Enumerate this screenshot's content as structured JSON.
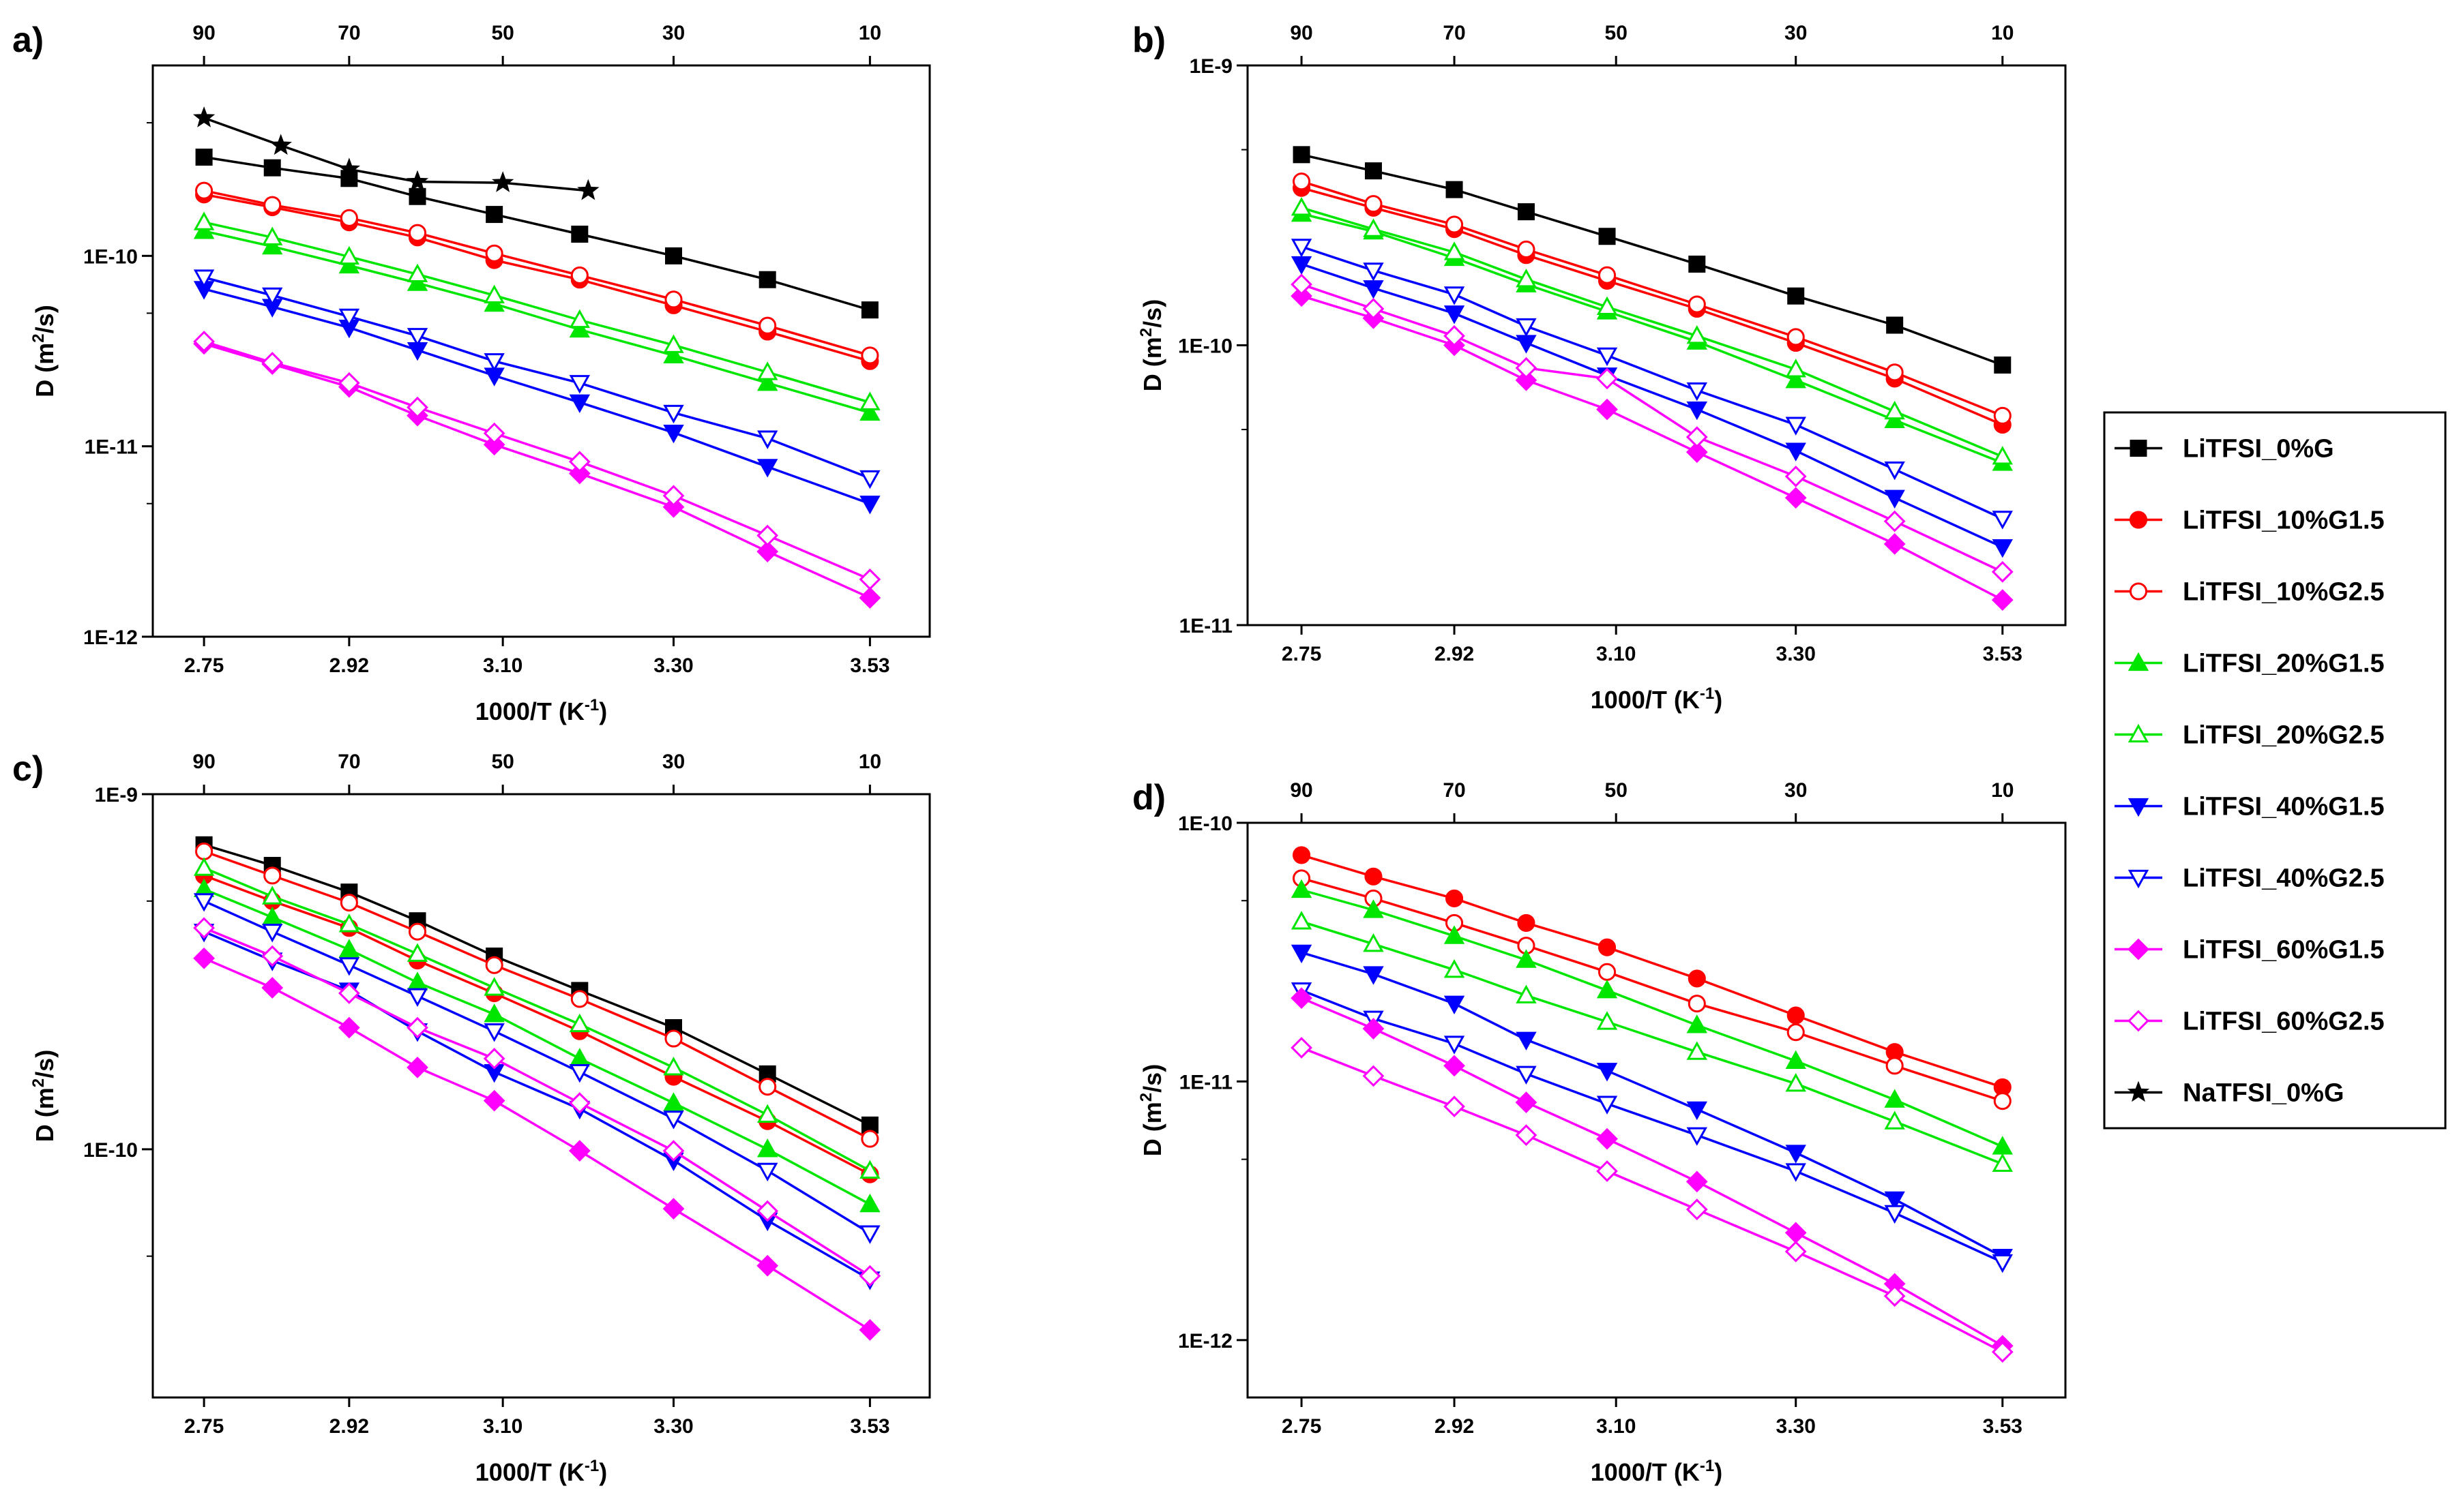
{
  "legend": [
    {
      "name": "LiTFSI_0%G",
      "color": "#000000",
      "marker": "square",
      "filled": true
    },
    {
      "name": "LiTFSI_10%G1.5",
      "color": "#ff0000",
      "marker": "circle",
      "filled": true
    },
    {
      "name": "LiTFSI_10%G2.5",
      "color": "#ff0000",
      "marker": "circle",
      "filled": false
    },
    {
      "name": "LiTFSI_20%G1.5",
      "color": "#00e600",
      "marker": "triangle-up",
      "filled": true
    },
    {
      "name": "LiTFSI_20%G2.5",
      "color": "#00e600",
      "marker": "triangle-up",
      "filled": false
    },
    {
      "name": "LiTFSI_40%G1.5",
      "color": "#0000ff",
      "marker": "triangle-down",
      "filled": true
    },
    {
      "name": "LiTFSI_40%G2.5",
      "color": "#0000ff",
      "marker": "triangle-down",
      "filled": false
    },
    {
      "name": "LiTFSI_60%G1.5",
      "color": "#ff00ff",
      "marker": "diamond",
      "filled": true
    },
    {
      "name": "LiTFSI_60%G2.5",
      "color": "#ff00ff",
      "marker": "diamond",
      "filled": false
    },
    {
      "name": "NaTFSI_0%G",
      "color": "#000000",
      "marker": "star",
      "filled": true
    }
  ],
  "chart_data": [
    {
      "panel": "a)",
      "type": "line",
      "xlabel": "1000/T (K",
      "xlabel_sup": "-1",
      "ylabel": "D (m",
      "ylabel_sup": "2",
      "ylabel_end": "/s)",
      "xlim": [
        2.69,
        3.6
      ],
      "ylim": [
        1e-12,
        1e-09
      ],
      "y_scale": "log",
      "x_ticks": [
        2.75,
        2.92,
        3.1,
        3.3,
        3.53
      ],
      "x_tick_labels": [
        "2.75",
        "2.92",
        "3.10",
        "3.30",
        "3.53"
      ],
      "y_ticks": [
        1e-12,
        1e-11,
        1e-10
      ],
      "y_tick_labels": [
        "1E-12",
        "1E-11",
        "1E-10"
      ],
      "top_ticks": [
        2.75,
        2.92,
        3.1,
        3.3,
        3.53
      ],
      "top_tick_labels": [
        "90",
        "70",
        "50",
        "30",
        "10"
      ],
      "x": [
        2.75,
        2.83,
        2.92,
        3.0,
        3.09,
        3.19,
        3.3,
        3.41,
        3.53
      ],
      "series": [
        {
          "name": "LiTFSI_0%G",
          "values": [
            3.3e-10,
            2.9e-10,
            2.55e-10,
            2.05e-10,
            1.65e-10,
            1.3e-10,
            1e-10,
            7.5e-11,
            5.2e-11
          ]
        },
        {
          "name": "LiTFSI_10%G1.5",
          "values": [
            2.1e-10,
            1.8e-10,
            1.5e-10,
            1.25e-10,
            9.5e-11,
            7.5e-11,
            5.5e-11,
            4e-11,
            2.8e-11
          ]
        },
        {
          "name": "LiTFSI_10%G2.5",
          "values": [
            2.2e-10,
            1.85e-10,
            1.58e-10,
            1.32e-10,
            1.03e-10,
            7.9e-11,
            5.9e-11,
            4.3e-11,
            3e-11
          ]
        },
        {
          "name": "LiTFSI_20%G1.5",
          "values": [
            1.35e-10,
            1.12e-10,
            8.9e-11,
            7.2e-11,
            5.6e-11,
            4.1e-11,
            3e-11,
            2.15e-11,
            1.5e-11
          ]
        },
        {
          "name": "LiTFSI_20%G2.5",
          "values": [
            1.5e-10,
            1.25e-10,
            9.9e-11,
            8e-11,
            6.2e-11,
            4.6e-11,
            3.4e-11,
            2.45e-11,
            1.7e-11
          ]
        },
        {
          "name": "LiTFSI_40%G1.5",
          "values": [
            6.7e-11,
            5.4e-11,
            4.2e-11,
            3.2e-11,
            2.35e-11,
            1.7e-11,
            1.18e-11,
            7.8e-12,
            5e-12
          ]
        },
        {
          "name": "LiTFSI_40%G2.5",
          "values": [
            7.7e-11,
            6.2e-11,
            4.8e-11,
            3.8e-11,
            2.8e-11,
            2.15e-11,
            1.5e-11,
            1.1e-11,
            6.8e-12
          ]
        },
        {
          "name": "LiTFSI_60%G1.5",
          "values": [
            3.45e-11,
            2.7e-11,
            2.05e-11,
            1.45e-11,
            1.02e-11,
            7.2e-12,
            4.8e-12,
            2.8e-12,
            1.6e-12
          ]
        },
        {
          "name": "LiTFSI_60%G2.5",
          "values": [
            3.55e-11,
            2.75e-11,
            2.15e-11,
            1.6e-11,
            1.17e-11,
            8.3e-12,
            5.5e-12,
            3.4e-12,
            2e-12
          ]
        },
        {
          "name": "NaTFSI_0%G",
          "x": [
            2.75,
            2.84,
            2.92,
            3.0,
            3.1,
            3.2
          ],
          "values": [
            5.3e-10,
            3.8e-10,
            2.85e-10,
            2.45e-10,
            2.42e-10,
            2.2e-10
          ]
        }
      ]
    },
    {
      "panel": "b)",
      "type": "line",
      "xlabel": "1000/T (K",
      "xlabel_sup": "-1",
      "ylabel": "D (m",
      "ylabel_sup": "2",
      "ylabel_end": "/s)",
      "xlim": [
        2.69,
        3.6
      ],
      "ylim": [
        1e-11,
        1e-09
      ],
      "y_scale": "log",
      "x_ticks": [
        2.75,
        2.92,
        3.1,
        3.3,
        3.53
      ],
      "x_tick_labels": [
        "2.75",
        "2.92",
        "3.10",
        "3.30",
        "3.53"
      ],
      "y_ticks": [
        1e-11,
        1e-10,
        1e-09
      ],
      "y_tick_labels": [
        "1E-11",
        "1E-10",
        "1E-9"
      ],
      "top_ticks": [
        2.75,
        2.92,
        3.1,
        3.3,
        3.53
      ],
      "top_tick_labels": [
        "90",
        "70",
        "50",
        "30",
        "10"
      ],
      "x": [
        2.75,
        2.83,
        2.92,
        3.0,
        3.09,
        3.19,
        3.3,
        3.41,
        3.53
      ],
      "series": [
        {
          "name": "LiTFSI_0%G",
          "values": [
            4.8e-10,
            4.2e-10,
            3.6e-10,
            3e-10,
            2.45e-10,
            1.95e-10,
            1.5e-10,
            1.18e-10,
            8.5e-11
          ]
        },
        {
          "name": "LiTFSI_10%G1.5",
          "values": [
            3.65e-10,
            3.1e-10,
            2.6e-10,
            2.1e-10,
            1.7e-10,
            1.35e-10,
            1.02e-10,
            7.6e-11,
            5.2e-11
          ]
        },
        {
          "name": "LiTFSI_10%G2.5",
          "values": [
            3.85e-10,
            3.2e-10,
            2.7e-10,
            2.2e-10,
            1.78e-10,
            1.4e-10,
            1.07e-10,
            8e-11,
            5.6e-11
          ]
        },
        {
          "name": "LiTFSI_20%G1.5",
          "values": [
            2.95e-10,
            2.55e-10,
            2.05e-10,
            1.65e-10,
            1.32e-10,
            1.03e-10,
            7.5e-11,
            5.4e-11,
            3.8e-11
          ]
        },
        {
          "name": "LiTFSI_20%G2.5",
          "values": [
            3.1e-10,
            2.6e-10,
            2.15e-10,
            1.72e-10,
            1.37e-10,
            1.08e-10,
            8.2e-11,
            5.8e-11,
            4e-11
          ]
        },
        {
          "name": "LiTFSI_40%G1.5",
          "values": [
            1.95e-10,
            1.6e-10,
            1.3e-10,
            1.02e-10,
            7.8e-11,
            5.9e-11,
            4.2e-11,
            2.85e-11,
            1.9e-11
          ]
        },
        {
          "name": "LiTFSI_40%G2.5",
          "values": [
            2.25e-10,
            1.85e-10,
            1.52e-10,
            1.17e-10,
            9.2e-11,
            6.9e-11,
            5.2e-11,
            3.6e-11,
            2.4e-11
          ]
        },
        {
          "name": "LiTFSI_60%G1.5",
          "values": [
            1.5e-10,
            1.25e-10,
            1e-10,
            7.5e-11,
            5.9e-11,
            4.15e-11,
            2.85e-11,
            1.95e-11,
            1.23e-11
          ]
        },
        {
          "name": "LiTFSI_60%G2.5",
          "values": [
            1.65e-10,
            1.35e-10,
            1.08e-10,
            8.3e-11,
            7.6e-11,
            4.7e-11,
            3.4e-11,
            2.35e-11,
            1.55e-11
          ]
        }
      ]
    },
    {
      "panel": "c)",
      "type": "line",
      "xlabel": "1000/T (K",
      "xlabel_sup": "-1",
      "ylabel": "D (m",
      "ylabel_sup": "2",
      "ylabel_end": "/s)",
      "xlim": [
        2.69,
        3.6
      ],
      "ylim": [
        2e-11,
        1e-09
      ],
      "y_scale": "log",
      "x_ticks": [
        2.75,
        2.92,
        3.1,
        3.3,
        3.53
      ],
      "x_tick_labels": [
        "2.75",
        "2.92",
        "3.10",
        "3.30",
        "3.53"
      ],
      "y_ticks": [
        1e-10,
        1e-09
      ],
      "y_tick_labels": [
        "1E-10",
        "1E-9"
      ],
      "top_ticks": [
        2.75,
        2.92,
        3.1,
        3.3,
        3.53
      ],
      "top_tick_labels": [
        "90",
        "70",
        "50",
        "30",
        "10"
      ],
      "x": [
        2.75,
        2.83,
        2.92,
        3.0,
        3.09,
        3.19,
        3.3,
        3.41,
        3.53
      ],
      "series": [
        {
          "name": "LiTFSI_0%G",
          "values": [
            7.2e-10,
            6.3e-10,
            5.3e-10,
            4.4e-10,
            3.5e-10,
            2.8e-10,
            2.2e-10,
            1.63e-10,
            1.17e-10
          ]
        },
        {
          "name": "LiTFSI_10%G1.5",
          "values": [
            5.9e-10,
            5e-10,
            4.2e-10,
            3.4e-10,
            2.75e-10,
            2.15e-10,
            1.6e-10,
            1.2e-10,
            8.5e-11
          ]
        },
        {
          "name": "LiTFSI_10%G2.5",
          "values": [
            6.9e-10,
            5.9e-10,
            4.95e-10,
            4.1e-10,
            3.3e-10,
            2.65e-10,
            2.05e-10,
            1.5e-10,
            1.07e-10
          ]
        },
        {
          "name": "LiTFSI_20%G1.5",
          "values": [
            5.4e-10,
            4.5e-10,
            3.65e-10,
            2.95e-10,
            2.4e-10,
            1.8e-10,
            1.35e-10,
            1e-10,
            7e-11
          ]
        },
        {
          "name": "LiTFSI_20%G2.5",
          "values": [
            6.2e-10,
            5.15e-10,
            4.3e-10,
            3.55e-10,
            2.85e-10,
            2.25e-10,
            1.7e-10,
            1.25e-10,
            8.7e-11
          ]
        },
        {
          "name": "LiTFSI_40%G1.5",
          "values": [
            4.1e-10,
            3.4e-10,
            2.8e-10,
            2.15e-10,
            1.65e-10,
            1.3e-10,
            9.3e-11,
            6.3e-11,
            4.3e-11
          ]
        },
        {
          "name": "LiTFSI_40%G2.5",
          "values": [
            5e-10,
            4.1e-10,
            3.3e-10,
            2.7e-10,
            2.15e-10,
            1.65e-10,
            1.22e-10,
            8.7e-11,
            5.8e-11
          ]
        },
        {
          "name": "LiTFSI_60%G1.5",
          "values": [
            3.45e-10,
            2.85e-10,
            2.2e-10,
            1.7e-10,
            1.37e-10,
            9.9e-11,
            6.8e-11,
            4.7e-11,
            3.1e-11
          ]
        },
        {
          "name": "LiTFSI_60%G2.5",
          "values": [
            4.2e-10,
            3.5e-10,
            2.75e-10,
            2.2e-10,
            1.8e-10,
            1.35e-10,
            9.9e-11,
            6.7e-11,
            4.4e-11
          ]
        }
      ]
    },
    {
      "panel": "d)",
      "type": "line",
      "xlabel": "1000/T (K",
      "xlabel_sup": "-1",
      "ylabel": "D (m",
      "ylabel_sup": "2",
      "ylabel_end": "/s)",
      "xlim": [
        2.69,
        3.6
      ],
      "ylim": [
        6e-13,
        1e-10
      ],
      "y_scale": "log",
      "x_ticks": [
        2.75,
        2.92,
        3.1,
        3.3,
        3.53
      ],
      "x_tick_labels": [
        "2.75",
        "2.92",
        "3.10",
        "3.30",
        "3.53"
      ],
      "y_ticks": [
        1e-12,
        1e-11,
        1e-10
      ],
      "y_tick_labels": [
        "1E-12",
        "1E-11",
        "1E-10"
      ],
      "top_ticks": [
        2.75,
        2.92,
        3.1,
        3.3,
        3.53
      ],
      "top_tick_labels": [
        "90",
        "70",
        "50",
        "30",
        "10"
      ],
      "x": [
        2.75,
        2.83,
        2.92,
        3.0,
        3.09,
        3.19,
        3.3,
        3.41,
        3.53
      ],
      "series": [
        {
          "name": "LiTFSI_10%G1.5",
          "values": [
            7.5e-11,
            6.2e-11,
            5.1e-11,
            4.1e-11,
            3.3e-11,
            2.5e-11,
            1.8e-11,
            1.3e-11,
            9.5e-12
          ]
        },
        {
          "name": "LiTFSI_10%G2.5",
          "values": [
            6.1e-11,
            5.1e-11,
            4.1e-11,
            3.35e-11,
            2.65e-11,
            2e-11,
            1.55e-11,
            1.15e-11,
            8.4e-12
          ]
        },
        {
          "name": "LiTFSI_20%G1.5",
          "values": [
            5.5e-11,
            4.6e-11,
            3.65e-11,
            2.95e-11,
            2.25e-11,
            1.65e-11,
            1.2e-11,
            8.5e-12,
            5.6e-12
          ]
        },
        {
          "name": "LiTFSI_20%G2.5",
          "values": [
            4.15e-11,
            3.4e-11,
            2.7e-11,
            2.15e-11,
            1.7e-11,
            1.3e-11,
            9.8e-12,
            7e-12,
            4.8e-12
          ]
        },
        {
          "name": "LiTFSI_40%G1.5",
          "values": [
            3.15e-11,
            2.6e-11,
            2e-11,
            1.45e-11,
            1.1e-11,
            7.8e-12,
            5.3e-12,
            3.5e-12,
            2.1e-12
          ]
        },
        {
          "name": "LiTFSI_40%G2.5",
          "values": [
            2.25e-11,
            1.75e-11,
            1.4e-11,
            1.07e-11,
            8.2e-12,
            6.2e-12,
            4.5e-12,
            3.1e-12,
            2e-12
          ]
        },
        {
          "name": "LiTFSI_60%G1.5",
          "values": [
            2.1e-11,
            1.6e-11,
            1.15e-11,
            8.3e-12,
            6e-12,
            4.1e-12,
            2.6e-12,
            1.65e-12,
            9.5e-13
          ]
        },
        {
          "name": "LiTFSI_60%G2.5",
          "values": [
            1.35e-11,
            1.05e-11,
            8e-12,
            6.2e-12,
            4.5e-12,
            3.2e-12,
            2.2e-12,
            1.48e-12,
            9e-13
          ]
        }
      ]
    }
  ]
}
